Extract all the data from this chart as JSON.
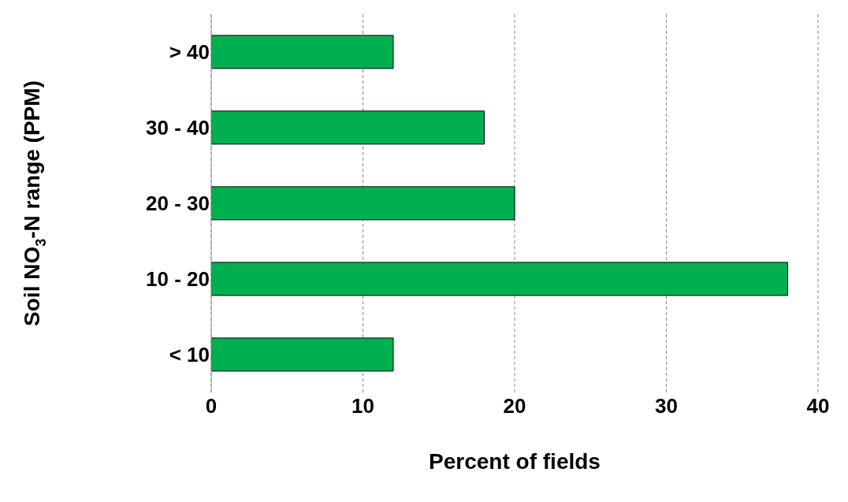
{
  "chart_data": {
    "type": "bar",
    "orientation": "horizontal",
    "xlabel": "Percent of fields",
    "ylabel": "Soil NO$_{3}$-N range (PPM)",
    "categories": [
      "> 40",
      "30 - 40",
      "20 - 30",
      "10 - 20",
      "< 10"
    ],
    "values": [
      12,
      18,
      20,
      38,
      12
    ],
    "color": "#00b050",
    "xlim": [
      0,
      40
    ],
    "xticks": [
      0,
      10,
      20,
      30,
      40
    ],
    "grid": "x"
  }
}
